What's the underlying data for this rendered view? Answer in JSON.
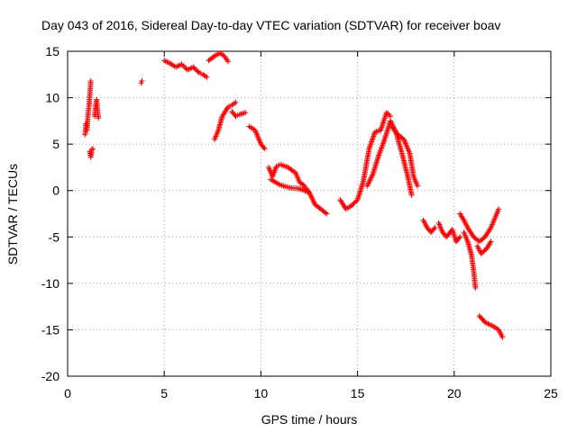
{
  "chart_data": {
    "type": "scatter",
    "title": "Day 043 of 2016, Sidereal Day-to-day VTEC variation (SDTVAR) for receiver boav",
    "xlabel": "GPS time / hours",
    "ylabel": "SDTVAR / TECUs",
    "xlim": [
      0,
      25
    ],
    "ylim": [
      -20,
      15
    ],
    "xticks": [
      0,
      5,
      10,
      15,
      20,
      25
    ],
    "yticks": [
      -20,
      -15,
      -10,
      -5,
      0,
      5,
      10,
      15
    ],
    "grid": true,
    "marker": "+",
    "color": "#ff0000",
    "series": [
      {
        "name": "SDTVAR",
        "segments": [
          [
            [
              0.9,
              6.0
            ],
            [
              0.95,
              7.2
            ],
            [
              1.0,
              6.5
            ],
            [
              1.05,
              8.0
            ],
            [
              1.1,
              9.0
            ],
            [
              1.15,
              10.3
            ],
            [
              1.2,
              11.8
            ]
          ],
          [
            [
              1.15,
              4.2
            ],
            [
              1.2,
              3.6
            ],
            [
              1.25,
              4.4
            ],
            [
              1.3,
              4.5
            ]
          ],
          [
            [
              1.4,
              8.0
            ],
            [
              1.45,
              9.0
            ],
            [
              1.5,
              9.8
            ],
            [
              1.55,
              8.5
            ],
            [
              1.6,
              7.8
            ]
          ],
          [
            [
              3.8,
              11.6
            ],
            [
              3.85,
              11.8
            ]
          ],
          [
            [
              5.0,
              14.0
            ],
            [
              5.3,
              13.7
            ],
            [
              5.6,
              13.3
            ],
            [
              5.9,
              13.6
            ],
            [
              6.2,
              13.0
            ],
            [
              6.5,
              13.3
            ],
            [
              6.8,
              12.7
            ],
            [
              7.0,
              12.5
            ],
            [
              7.2,
              12.2
            ]
          ],
          [
            [
              7.3,
              14.0
            ],
            [
              7.6,
              14.5
            ],
            [
              7.9,
              14.8
            ],
            [
              8.1,
              14.5
            ],
            [
              8.3,
              13.9
            ]
          ],
          [
            [
              7.6,
              5.5
            ],
            [
              7.8,
              6.5
            ],
            [
              8.0,
              8.0
            ],
            [
              8.3,
              9.0
            ],
            [
              8.5,
              9.2
            ],
            [
              8.7,
              9.5
            ]
          ],
          [
            [
              8.5,
              8.5
            ],
            [
              8.7,
              8.0
            ],
            [
              8.9,
              8.2
            ],
            [
              9.2,
              8.4
            ]
          ],
          [
            [
              9.4,
              6.9
            ],
            [
              9.7,
              6.5
            ],
            [
              10.0,
              5.0
            ],
            [
              10.2,
              4.5
            ]
          ],
          [
            [
              10.4,
              2.5
            ],
            [
              10.6,
              1.5
            ],
            [
              10.8,
              2.6
            ],
            [
              11.0,
              2.8
            ],
            [
              11.4,
              2.5
            ],
            [
              11.8,
              1.9
            ],
            [
              12.0,
              0.9
            ],
            [
              12.2,
              0.6
            ],
            [
              12.5,
              -0.2
            ],
            [
              12.8,
              -1.5
            ],
            [
              13.1,
              -2.0
            ],
            [
              13.4,
              -2.5
            ]
          ],
          [
            [
              10.5,
              1.2
            ],
            [
              11.0,
              0.6
            ],
            [
              11.5,
              0.3
            ],
            [
              12.0,
              0.2
            ],
            [
              12.5,
              -0.2
            ]
          ],
          [
            [
              14.1,
              -1.0
            ],
            [
              14.4,
              -2.0
            ],
            [
              14.7,
              -1.6
            ],
            [
              15.0,
              -1.0
            ],
            [
              15.3,
              1.0
            ],
            [
              15.6,
              4.5
            ],
            [
              15.9,
              6.3
            ],
            [
              16.2,
              6.5
            ],
            [
              16.5,
              8.4
            ],
            [
              16.7,
              8.0
            ]
          ],
          [
            [
              15.5,
              0.5
            ],
            [
              15.8,
              1.8
            ],
            [
              16.1,
              3.8
            ],
            [
              16.4,
              5.5
            ],
            [
              16.7,
              7.5
            ],
            [
              17.0,
              6.2
            ],
            [
              17.3,
              4.0
            ],
            [
              17.6,
              1.5
            ],
            [
              17.8,
              -0.5
            ]
          ],
          [
            [
              16.8,
              6.8
            ],
            [
              17.1,
              6.0
            ],
            [
              17.4,
              5.5
            ],
            [
              17.7,
              4.0
            ],
            [
              17.9,
              1.5
            ],
            [
              18.1,
              0.5
            ]
          ],
          [
            [
              18.4,
              -3.2
            ],
            [
              18.6,
              -4.0
            ],
            [
              18.8,
              -4.5
            ],
            [
              19.0,
              -4.0
            ]
          ],
          [
            [
              19.2,
              -3.5
            ],
            [
              19.4,
              -4.5
            ],
            [
              19.6,
              -5.0
            ],
            [
              19.9,
              -4.2
            ],
            [
              20.1,
              -5.5
            ],
            [
              20.3,
              -5.0
            ]
          ],
          [
            [
              20.3,
              -2.5
            ],
            [
              20.5,
              -3.2
            ],
            [
              20.7,
              -4.0
            ],
            [
              21.0,
              -5.0
            ],
            [
              21.3,
              -5.5
            ],
            [
              21.6,
              -5.0
            ],
            [
              21.9,
              -4.0
            ],
            [
              22.1,
              -3.0
            ],
            [
              22.3,
              -2.0
            ]
          ],
          [
            [
              20.5,
              -4.5
            ],
            [
              20.7,
              -5.5
            ],
            [
              20.9,
              -7.0
            ],
            [
              21.0,
              -8.5
            ],
            [
              21.1,
              -10.5
            ]
          ],
          [
            [
              21.2,
              -6.0
            ],
            [
              21.4,
              -6.8
            ],
            [
              21.7,
              -6.2
            ],
            [
              21.9,
              -5.5
            ]
          ],
          [
            [
              21.3,
              -13.5
            ],
            [
              21.6,
              -14.2
            ],
            [
              22.0,
              -14.6
            ],
            [
              22.3,
              -15.0
            ],
            [
              22.5,
              -15.8
            ]
          ]
        ]
      }
    ]
  }
}
